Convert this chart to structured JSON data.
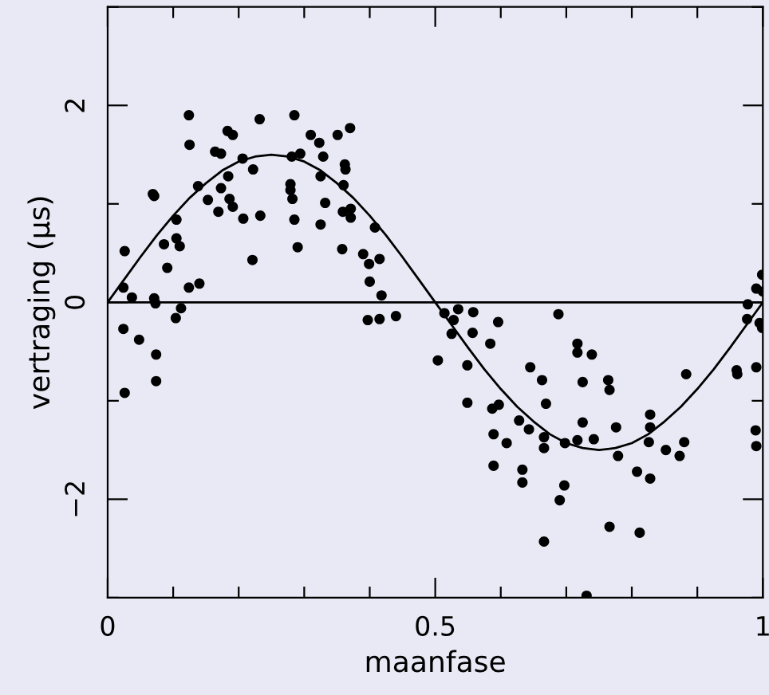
{
  "chart_data": {
    "type": "scatter",
    "xlabel": "maanfase",
    "ylabel": "vertraging (μs)",
    "xlim": [
      0,
      1
    ],
    "ylim": [
      -3,
      3
    ],
    "xticks": [
      0,
      {
        "value": 0.1,
        "label": null
      },
      {
        "value": 0.2,
        "label": null
      },
      {
        "value": 0.3,
        "label": null
      },
      {
        "value": 0.4,
        "label": null
      },
      {
        "value": 0.5,
        "label": "0.5"
      },
      {
        "value": 0.6,
        "label": null
      },
      {
        "value": 0.7,
        "label": null
      },
      {
        "value": 0.8,
        "label": null
      },
      {
        "value": 0.9,
        "label": null
      },
      1
    ],
    "yticks": [
      {
        "value": -3,
        "label": null
      },
      {
        "value": -2,
        "label": "−2"
      },
      {
        "value": -1,
        "label": null
      },
      0,
      {
        "value": 1,
        "label": null
      },
      2,
      {
        "value": 3,
        "label": null
      }
    ],
    "grid": false,
    "legend": false,
    "ref_lines": [
      {
        "axis": "y",
        "value": 0,
        "color": "#000000"
      }
    ],
    "series": [
      {
        "color": "#000000",
        "marker": "circle",
        "x": [
          0.026,
          0.024,
          0.037,
          0.024,
          0.048,
          0.026,
          0.069,
          0.071,
          0.071,
          0.073,
          0.074,
          0.074,
          0.086,
          0.091,
          0.105,
          0.105,
          0.11,
          0.112,
          0.104,
          0.124,
          0.14,
          0.124,
          0.125,
          0.138,
          0.153,
          0.169,
          0.164,
          0.173,
          0.173,
          0.184,
          0.186,
          0.191,
          0.183,
          0.191,
          0.207,
          0.206,
          0.222,
          0.232,
          0.233,
          0.221,
          0.285,
          0.281,
          0.294,
          0.279,
          0.279,
          0.282,
          0.285,
          0.29,
          0.31,
          0.323,
          0.329,
          0.351,
          0.37,
          0.325,
          0.332,
          0.325,
          0.362,
          0.363,
          0.36,
          0.359,
          0.371,
          0.371,
          0.358,
          0.408,
          0.39,
          0.399,
          0.415,
          0.4,
          0.418,
          0.397,
          0.415,
          0.44,
          0.504,
          0.514,
          0.535,
          0.528,
          0.558,
          0.525,
          0.557,
          0.596,
          0.584,
          0.549,
          0.549,
          0.587,
          0.597,
          0.628,
          0.589,
          0.609,
          0.589,
          0.643,
          0.633,
          0.633,
          0.645,
          0.663,
          0.669,
          0.666,
          0.666,
          0.666,
          0.688,
          0.698,
          0.697,
          0.69,
          0.717,
          0.717,
          0.739,
          0.725,
          0.725,
          0.717,
          0.742,
          0.731,
          0.764,
          0.766,
          0.776,
          0.779,
          0.766,
          0.812,
          0.808,
          0.828,
          0.828,
          0.828,
          0.826,
          0.852,
          0.873,
          0.88,
          0.883,
          0.96,
          0.961,
          0.99,
          0.989,
          0.99,
          0.977,
          0.976,
          0.99,
          0.999,
          1.0,
          0.995,
          0.999
        ],
        "values": [
          0.52,
          0.15,
          0.05,
          -0.27,
          -0.38,
          -0.92,
          1.1,
          1.08,
          0.04,
          -0.01,
          -0.53,
          -0.8,
          0.59,
          0.35,
          0.84,
          0.65,
          0.57,
          -0.06,
          -0.16,
          0.15,
          0.19,
          1.9,
          1.6,
          1.18,
          1.04,
          0.92,
          1.53,
          1.51,
          1.16,
          1.28,
          1.05,
          0.97,
          1.74,
          1.7,
          0.85,
          1.46,
          1.35,
          1.86,
          0.88,
          0.43,
          1.9,
          1.48,
          1.51,
          1.2,
          1.14,
          1.05,
          0.84,
          0.56,
          1.7,
          1.62,
          1.48,
          1.7,
          1.77,
          1.28,
          1.01,
          0.79,
          1.4,
          1.35,
          1.19,
          0.92,
          0.95,
          0.86,
          0.54,
          0.76,
          0.49,
          0.39,
          0.44,
          0.21,
          0.07,
          -0.18,
          -0.17,
          -0.14,
          -0.59,
          -0.11,
          -0.07,
          -0.18,
          -0.1,
          -0.32,
          -0.31,
          -0.2,
          -0.42,
          -0.64,
          -1.02,
          -1.08,
          -1.04,
          -1.2,
          -1.34,
          -1.43,
          -1.66,
          -1.29,
          -1.7,
          -1.83,
          -0.66,
          -0.79,
          -1.03,
          -1.37,
          -1.48,
          -2.43,
          -0.12,
          -1.43,
          -1.86,
          -2.01,
          -0.42,
          -0.51,
          -0.53,
          -0.81,
          -1.22,
          -1.4,
          -1.39,
          -2.98,
          -0.79,
          -0.89,
          -1.27,
          -1.56,
          -2.28,
          -2.34,
          -1.72,
          -1.79,
          -1.14,
          -1.27,
          -1.42,
          -1.5,
          -1.56,
          -1.42,
          -0.73,
          -0.69,
          -0.73,
          -0.66,
          -1.3,
          -1.46,
          -0.02,
          -0.17,
          0.14,
          0.28,
          0.11,
          -0.21,
          -0.26
        ]
      },
      {
        "type": "line",
        "color": "#000000",
        "marker": "none",
        "line_style": "solid",
        "x": [
          0,
          0.025,
          0.05,
          0.075,
          0.1,
          0.125,
          0.15,
          0.175,
          0.2,
          0.225,
          0.25,
          0.275,
          0.3,
          0.325,
          0.35,
          0.375,
          0.4,
          0.425,
          0.45,
          0.475,
          0.5,
          0.525,
          0.55,
          0.575,
          0.6,
          0.625,
          0.65,
          0.675,
          0.7,
          0.725,
          0.75,
          0.775,
          0.8,
          0.825,
          0.85,
          0.875,
          0.9,
          0.925,
          0.95,
          0.975,
          1
        ],
        "values": [
          0,
          0.23,
          0.46,
          0.68,
          0.88,
          1.06,
          1.21,
          1.34,
          1.43,
          1.48,
          1.5,
          1.48,
          1.43,
          1.34,
          1.21,
          1.06,
          0.88,
          0.68,
          0.46,
          0.23,
          0,
          -0.23,
          -0.46,
          -0.68,
          -0.88,
          -1.06,
          -1.21,
          -1.34,
          -1.43,
          -1.48,
          -1.5,
          -1.48,
          -1.43,
          -1.34,
          -1.21,
          -1.06,
          -0.88,
          -0.68,
          -0.46,
          -0.23,
          0
        ]
      }
    ]
  }
}
